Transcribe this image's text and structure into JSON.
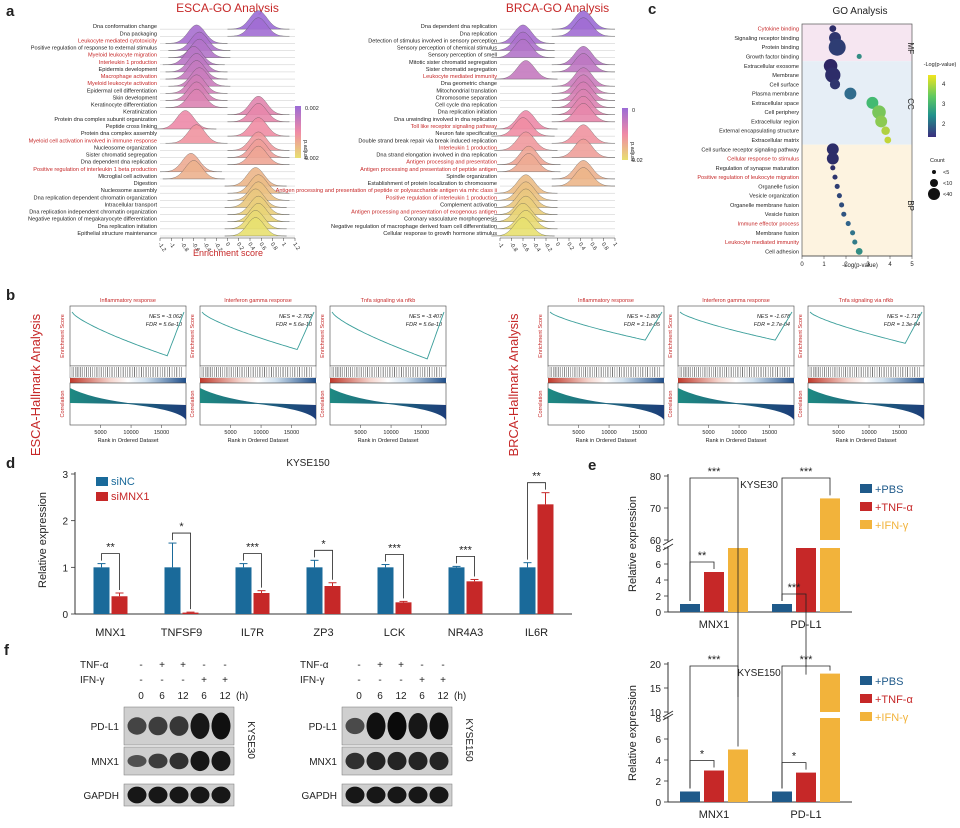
{
  "panel_letters": {
    "a": "a",
    "b": "b",
    "c": "c",
    "d": "d",
    "e": "e",
    "f": "f"
  },
  "colors": {
    "red": "#c62828",
    "blue": "#1f5a8a",
    "blue2": "#1a6a9a",
    "orange": "#f2b33b",
    "teal": "#3a9e9a"
  },
  "panel_a": {
    "esca": {
      "title": "ESCA-GO Analysis",
      "xlabel": "Enrichment score",
      "xticks": [
        "-1.2",
        "-1",
        "-0.8",
        "-0.6",
        "-0.4",
        "-0.2",
        "0",
        "0.2",
        "0.4",
        "0.6",
        "0.8",
        "1",
        "1.2"
      ],
      "legend_title": "p.adjust",
      "legend_top": "0.002",
      "legend_bottom": "0.002",
      "terms": [
        {
          "t": "Dna conformation change",
          "red": false,
          "peak": 0.55
        },
        {
          "t": "Dna packaging",
          "red": false,
          "peak": 0.55
        },
        {
          "t": "Leukocyte mediated cytotoxicity",
          "red": true,
          "peak": -0.55
        },
        {
          "t": "Positive regulation of response to external stimulus",
          "red": false,
          "peak": -0.5
        },
        {
          "t": "Myeloid leukocyte migration",
          "red": true,
          "peak": -0.5
        },
        {
          "t": "Interleukin 1 production",
          "red": true,
          "peak": -0.6
        },
        {
          "t": "Epidermis development",
          "red": false,
          "peak": -0.55
        },
        {
          "t": "Macrophage activation",
          "red": true,
          "peak": -0.55
        },
        {
          "t": "Myeloid leukocyte activation",
          "red": true,
          "peak": -0.5
        },
        {
          "t": "Epidermal cell differentiation",
          "red": false,
          "peak": -0.55
        },
        {
          "t": "Skin development",
          "red": false,
          "peak": -0.55
        },
        {
          "t": "Keratinocyte differentiation",
          "red": false,
          "peak": -0.55
        },
        {
          "t": "Keratinization",
          "red": false,
          "peak": 0.55
        },
        {
          "t": "Protein dna complex subunit organization",
          "red": false,
          "peak": 0.55
        },
        {
          "t": "Peptide cross linking",
          "red": false,
          "peak": -0.75
        },
        {
          "t": "Protein dna complex assembly",
          "red": false,
          "peak": 0.55
        },
        {
          "t": "Myeloid cell activation involved in immune response",
          "red": true,
          "peak": -0.55
        },
        {
          "t": "Nucleosome organization",
          "red": false,
          "peak": 0.55
        },
        {
          "t": "Sister chromatid segregation",
          "red": false,
          "peak": 0.55
        },
        {
          "t": "Dna dependent dna replication",
          "red": false,
          "peak": 0.55
        },
        {
          "t": "Positive regulation of interleukin 1 beta production",
          "red": true,
          "peak": -0.65
        },
        {
          "t": "Microglial cell activation",
          "red": false,
          "peak": -0.6
        },
        {
          "t": "Digestion",
          "red": false,
          "peak": 0.5
        },
        {
          "t": "Nucleosome assembly",
          "red": false,
          "peak": 0.55
        },
        {
          "t": "Dna replication dependent chromatin organization",
          "red": false,
          "peak": 0.55
        },
        {
          "t": "Intracellular transport",
          "red": false,
          "peak": 0.5
        },
        {
          "t": "Dna replication independent chromatin organization",
          "red": false,
          "peak": 0.55
        },
        {
          "t": "Negative regulation of megakaryocyte differentiation",
          "red": false,
          "peak": 0.55
        },
        {
          "t": "Dna replication initiation",
          "red": false,
          "peak": 0.5
        },
        {
          "t": "Epithelial structure maintenance",
          "red": false,
          "peak": 0.5
        }
      ]
    },
    "brca": {
      "title": "BRCA-GO Analysis",
      "xticks": [
        "-1",
        "-0.8",
        "-0.6",
        "-0.4",
        "-0.2",
        "0",
        "0.2",
        "0.4",
        "0.6",
        "0.8",
        "1"
      ],
      "legend_title": "p.adjust",
      "legend_top": "0",
      "legend_bottom": "0.02",
      "terms": [
        {
          "t": "Dna dependent dna replication",
          "red": false,
          "peak": 0.45
        },
        {
          "t": "Dna replication",
          "red": false,
          "peak": 0.45
        },
        {
          "t": "Detection of stimulus involved in sensory perception",
          "red": false,
          "peak": -0.6
        },
        {
          "t": "Sensory perception of chemical stimulus",
          "red": false,
          "peak": -0.6
        },
        {
          "t": "Sensory perception of smell",
          "red": false,
          "peak": -0.6
        },
        {
          "t": "Mitotic sister chromatid segregation",
          "red": false,
          "peak": 0.45
        },
        {
          "t": "Sister chromatid segregation",
          "red": false,
          "peak": 0.45
        },
        {
          "t": "Leukocyte mediated immunity",
          "red": true,
          "peak": -0.55
        },
        {
          "t": "Dna geometric change",
          "red": false,
          "peak": 0.45
        },
        {
          "t": "Mitochondrial translation",
          "red": false,
          "peak": 0.45
        },
        {
          "t": "Chromosome separation",
          "red": false,
          "peak": 0.45
        },
        {
          "t": "Cell cycle dna replication",
          "red": false,
          "peak": 0.45
        },
        {
          "t": "Dna replication initiation",
          "red": false,
          "peak": 0.45
        },
        {
          "t": "Dna unwinding involved in dna replication",
          "red": false,
          "peak": 0.45
        },
        {
          "t": "Toll like receptor signaling pathway",
          "red": true,
          "peak": -0.55
        },
        {
          "t": "Neuron fate specification",
          "red": false,
          "peak": -0.6
        },
        {
          "t": "Double strand break repair via break induced replication",
          "red": false,
          "peak": 0.45
        },
        {
          "t": "Interleukin 1 production",
          "red": true,
          "peak": -0.55
        },
        {
          "t": "Dna strand elongation involved in dna replication",
          "red": false,
          "peak": 0.45
        },
        {
          "t": "Antigen processing and presentation",
          "red": true,
          "peak": -0.5
        },
        {
          "t": "Antigen processing and presentation of peptide antigen",
          "red": true,
          "peak": -0.5
        },
        {
          "t": "Spindle organization",
          "red": false,
          "peak": 0.45
        },
        {
          "t": "Establishment of protein localization to chromosome",
          "red": false,
          "peak": 0.45
        },
        {
          "t": "Antigen processing and presentation of peptide or polysaccharide antigen via mhc class ii",
          "red": true,
          "peak": -0.55
        },
        {
          "t": "Positive regulation of interleukin 1 production",
          "red": true,
          "peak": -0.55
        },
        {
          "t": "Complement activation",
          "red": false,
          "peak": -0.55
        },
        {
          "t": "Antigen processing and presentation of exogenous antigen",
          "red": true,
          "peak": -0.55
        },
        {
          "t": "Coronary vasculature morphogenesis",
          "red": false,
          "peak": -0.6
        },
        {
          "t": "Negative regulation of macrophage derived foam cell differentiation",
          "red": false,
          "peak": -0.55
        },
        {
          "t": "Cellular response to growth hormone stimulus",
          "red": false,
          "peak": -0.6
        }
      ]
    }
  },
  "panel_b": {
    "esca_label": "ESCA-Hallmark Analysis",
    "brca_label": "BRCA-Hallmark Analysis",
    "ylabel_es": "Enrichment Score",
    "ylabel_corr": "Correlation",
    "xlabel": "Rank in Ordered Dataset",
    "xticks": [
      "5000",
      "10000",
      "15000"
    ],
    "plots": [
      {
        "title": "Inflammatory response",
        "nes": "NES = -3.062",
        "fdr": "FDR = 5.6e-10",
        "min": -0.7
      },
      {
        "title": "Interferon gamma response",
        "nes": "NES = -2.782",
        "fdr": "FDR = 5.6e-10",
        "min": -0.6
      },
      {
        "title": "Tnfa signaling via nfkb",
        "nes": "NES = -3.407",
        "fdr": "FDR = 5.6e-10",
        "min": -0.75
      },
      {
        "title": "Inflammatory response",
        "nes": "NES = -1.806",
        "fdr": "FDR = 2.1e-05",
        "min": -0.45
      },
      {
        "title": "Interferon gamma response",
        "nes": "NES = -1.678",
        "fdr": "FDR = 2.7e-04",
        "min": -0.45
      },
      {
        "title": "Tnfa signaling via nfkb",
        "nes": "NES = -1.718",
        "fdr": "FDR = 1.3e-04",
        "min": -0.5
      }
    ]
  },
  "panel_c": {
    "title": "GO Analysis",
    "xlabel": "-Log(p-value)",
    "xticks": [
      "0",
      "1",
      "2",
      "3",
      "4",
      "5"
    ],
    "groups": {
      "mf": "MF",
      "cc": "CC",
      "bp": "BP"
    },
    "color_title": "-Log(p-value)",
    "color_ticks": [
      "4",
      "3",
      "2"
    ],
    "count_title": "Count",
    "count_labels": [
      "<5",
      "<10",
      "<40"
    ],
    "terms": [
      {
        "t": "Cytokine binding",
        "red": true,
        "x": 1.4,
        "s": 4,
        "c": 1.4
      },
      {
        "t": "Signaling receptor binding",
        "red": false,
        "x": 1.5,
        "s": 7,
        "c": 1.5
      },
      {
        "t": "Protein binding",
        "red": false,
        "x": 1.6,
        "s": 10,
        "c": 1.6
      },
      {
        "t": "Growth factor binding",
        "red": false,
        "x": 2.6,
        "s": 3,
        "c": 2.6
      },
      {
        "t": "Extracellular exosome",
        "red": false,
        "x": 1.3,
        "s": 8,
        "c": 1.3
      },
      {
        "t": "Membrane",
        "red": false,
        "x": 1.4,
        "s": 9,
        "c": 1.4
      },
      {
        "t": "Cell surface",
        "red": false,
        "x": 1.5,
        "s": 6,
        "c": 1.5
      },
      {
        "t": "Plasma membrane",
        "red": false,
        "x": 2.2,
        "s": 7,
        "c": 2.2
      },
      {
        "t": "Extracellular space",
        "red": false,
        "x": 3.2,
        "s": 7,
        "c": 3.2
      },
      {
        "t": "Cell periphery",
        "red": false,
        "x": 3.5,
        "s": 8,
        "c": 3.5
      },
      {
        "t": "Extracellular region",
        "red": false,
        "x": 3.6,
        "s": 7,
        "c": 3.6
      },
      {
        "t": "External encapsulating structure",
        "red": false,
        "x": 3.8,
        "s": 5,
        "c": 3.8
      },
      {
        "t": "Extracellular matrix",
        "red": false,
        "x": 3.9,
        "s": 4,
        "c": 3.9
      },
      {
        "t": "Cell surface receptor signaling pathway",
        "red": false,
        "x": 1.4,
        "s": 7,
        "c": 1.4
      },
      {
        "t": "Cellular response to stimulus",
        "red": true,
        "x": 1.4,
        "s": 7,
        "c": 1.4
      },
      {
        "t": "Regulation of synapse maturation",
        "red": false,
        "x": 1.4,
        "s": 3,
        "c": 1.4
      },
      {
        "t": "Positive regulation of leukocyte migration",
        "red": true,
        "x": 1.5,
        "s": 3,
        "c": 1.5
      },
      {
        "t": "Organelle fusion",
        "red": false,
        "x": 1.6,
        "s": 3,
        "c": 1.6
      },
      {
        "t": "Vesicle organization",
        "red": false,
        "x": 1.7,
        "s": 3,
        "c": 1.7
      },
      {
        "t": "Organelle membrane fusion",
        "red": false,
        "x": 1.8,
        "s": 3,
        "c": 1.8
      },
      {
        "t": "Vesicle fusion",
        "red": false,
        "x": 1.9,
        "s": 3,
        "c": 1.9
      },
      {
        "t": "Immune effector process",
        "red": true,
        "x": 2.1,
        "s": 3,
        "c": 2.1
      },
      {
        "t": "Membrane fusion",
        "red": false,
        "x": 2.3,
        "s": 3,
        "c": 2.3
      },
      {
        "t": "Leukocyte mediated immunity",
        "red": true,
        "x": 2.4,
        "s": 3,
        "c": 2.4
      },
      {
        "t": "Cell adhesion",
        "red": false,
        "x": 2.6,
        "s": 4,
        "c": 2.6
      }
    ]
  },
  "chart_data": [
    {
      "type": "bar",
      "title": "KYSE150",
      "ylabel": "Relative expression",
      "ylim": [
        0,
        3
      ],
      "yticks": [
        "0",
        "1",
        "2",
        "3"
      ],
      "categories": [
        "MNX1",
        "TNFSF9",
        "IL7R",
        "ZP3",
        "LCK",
        "NR4A3",
        "IL6R"
      ],
      "series": [
        {
          "name": "siNC",
          "values": [
            1.0,
            1.0,
            1.0,
            1.0,
            1.0,
            1.0,
            1.0
          ],
          "err": [
            0.08,
            0.52,
            0.08,
            0.15,
            0.06,
            0.02,
            0.1
          ]
        },
        {
          "name": "siMNX1",
          "values": [
            0.38,
            0.03,
            0.45,
            0.6,
            0.25,
            0.7,
            2.35
          ],
          "err": [
            0.07,
            0.01,
            0.05,
            0.07,
            0.02,
            0.04,
            0.25
          ]
        }
      ],
      "sig": [
        "**",
        "*",
        "***",
        "*",
        "***",
        "***",
        "**"
      ]
    },
    {
      "type": "bar",
      "title": "KYSE30",
      "ylabel": "Relative expression",
      "yticks": [
        "0",
        "2",
        "4",
        "6",
        "8",
        "60",
        "70",
        "80"
      ],
      "categories": [
        "MNX1",
        "PD-L1"
      ],
      "series": [
        {
          "name": "+PBS",
          "values": [
            1.0,
            1.0
          ]
        },
        {
          "name": "+TNF-α",
          "values": [
            5.0,
            17
          ]
        },
        {
          "name": "+IFN-γ",
          "values": [
            10,
            73
          ]
        }
      ],
      "sig": [
        "**",
        "***",
        "***",
        "***"
      ]
    },
    {
      "type": "bar",
      "title": "KYSE150",
      "ylabel": "Relative expression",
      "yticks": [
        "0",
        "2",
        "4",
        "6",
        "8",
        "10",
        "15",
        "20"
      ],
      "categories": [
        "MNX1",
        "PD-L1"
      ],
      "series": [
        {
          "name": "+PBS",
          "values": [
            1.0,
            1.0
          ]
        },
        {
          "name": "+TNF-α",
          "values": [
            3.0,
            2.8
          ]
        },
        {
          "name": "+IFN-γ",
          "values": [
            5.0,
            18
          ]
        }
      ],
      "sig": [
        "*",
        "***",
        "*",
        "***"
      ]
    }
  ],
  "panel_f": {
    "left_cell": "KYSE30",
    "right_cell": "KYSE150",
    "tnf_label": "TNF-α",
    "ifn_label": "IFN-γ",
    "tnf": [
      "-",
      "+",
      "+",
      "-",
      "-"
    ],
    "ifn": [
      "-",
      "-",
      "-",
      "+",
      "+"
    ],
    "time": [
      "0",
      "6",
      "12",
      "6",
      "12"
    ],
    "time_unit": "(h)",
    "proteins": [
      "PD-L1",
      "MNX1",
      "GAPDH"
    ]
  }
}
